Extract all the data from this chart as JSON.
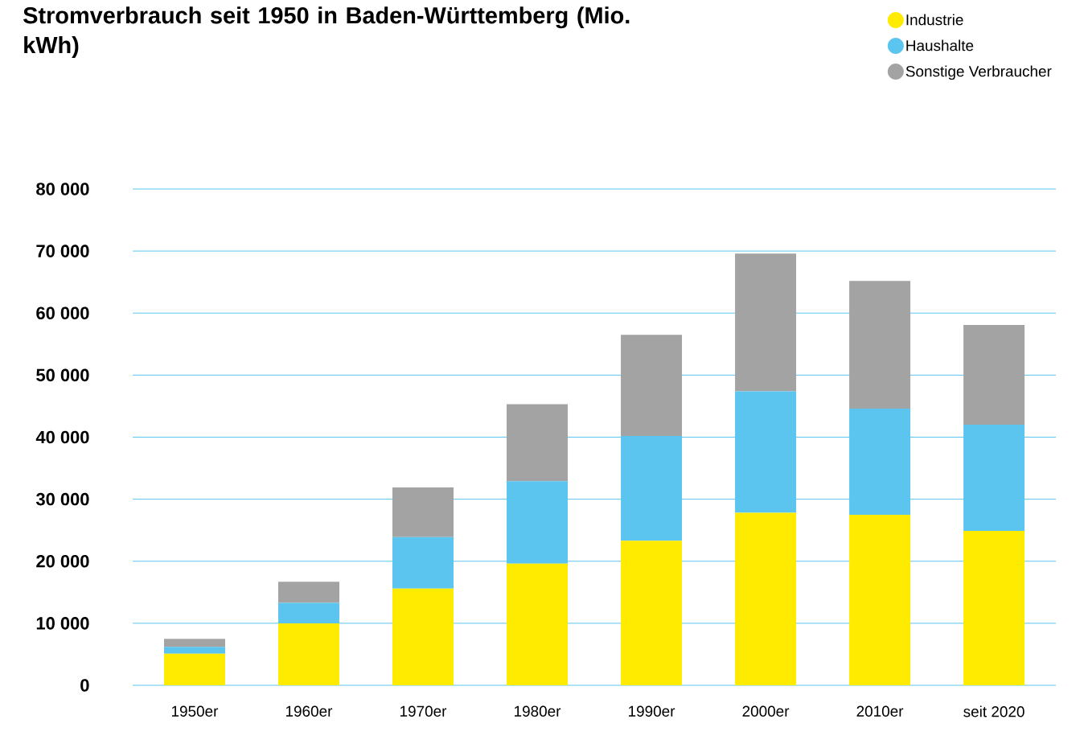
{
  "chart_data": {
    "type": "bar",
    "stacked": true,
    "title": "Stromverbrauch seit 1950 in Baden-Württemberg (Mio. kWh)",
    "categories": [
      "1950er",
      "1960er",
      "1970er",
      "1980er",
      "1990er",
      "2000er",
      "2010er",
      "seit 2020"
    ],
    "series": [
      {
        "name": "Industrie",
        "color": "#ffeb00",
        "values": [
          5100,
          10000,
          15600,
          19600,
          23300,
          27800,
          27500,
          24900
        ]
      },
      {
        "name": "Haushalte",
        "color": "#5bc5f0",
        "values": [
          1100,
          3300,
          8300,
          13300,
          16900,
          19600,
          17100,
          17100
        ]
      },
      {
        "name": "Sonstige Verbraucher",
        "color": "#a3a3a3",
        "values": [
          1300,
          3400,
          8000,
          12400,
          16300,
          22200,
          20600,
          16100
        ]
      }
    ],
    "ylim": [
      0,
      80000
    ],
    "yticks": [
      {
        "value": 0,
        "label": "0"
      },
      {
        "value": 10000,
        "label": "10 000"
      },
      {
        "value": 20000,
        "label": "20 000"
      },
      {
        "value": 30000,
        "label": "30 000"
      },
      {
        "value": 40000,
        "label": "40 000"
      },
      {
        "value": 50000,
        "label": "50 000"
      },
      {
        "value": 60000,
        "label": "60 000"
      },
      {
        "value": 70000,
        "label": "70 000"
      },
      {
        "value": 80000,
        "label": "80 000"
      }
    ],
    "grid": "y",
    "legend": "top right"
  }
}
